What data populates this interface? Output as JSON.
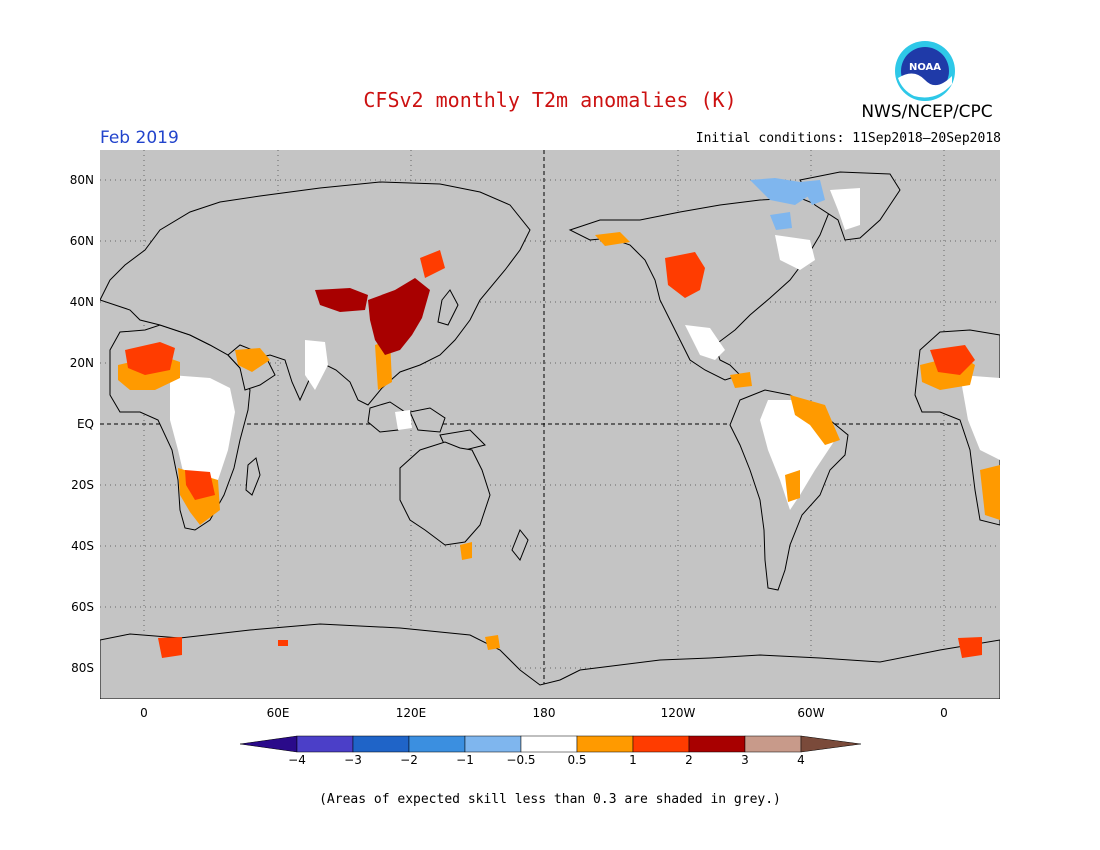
{
  "title": "CFSv2 monthly T2m anomalies (K)",
  "agency": "NWS/NCEP/CPC",
  "logo_text": "NOAA",
  "month": "Feb 2019",
  "initial_conditions": "Initial conditions: 11Sep2018–20Sep2018",
  "lat_labels": [
    "80N",
    "60N",
    "40N",
    "20N",
    "EQ",
    "20S",
    "40S",
    "60S",
    "80S"
  ],
  "lon_labels": [
    "0",
    "60E",
    "120E",
    "180",
    "120W",
    "60W",
    "0"
  ],
  "colorbar": {
    "labels": [
      "−4",
      "−3",
      "−2",
      "−1",
      "−0.5",
      "0.5",
      "1",
      "2",
      "3",
      "4"
    ],
    "colors": [
      "#2a0a8a",
      "#4b3fc8",
      "#1f64c8",
      "#3b8fe0",
      "#7fb6ee",
      "#ffffff",
      "#ff9a00",
      "#ff3c00",
      "#a80000",
      "#c89a8a",
      "#7a4a3a"
    ]
  },
  "footnote": "(Areas of expected skill less than 0.3 are shaded in grey.)",
  "map_colors": {
    "ocean": "#c4c4c4",
    "coast": "#000000",
    "neutral": "#ffffff",
    "warm1": "#ff9a00",
    "warm2": "#ff3c00",
    "warm3": "#a80000",
    "cool": "#7fb6ee"
  }
}
